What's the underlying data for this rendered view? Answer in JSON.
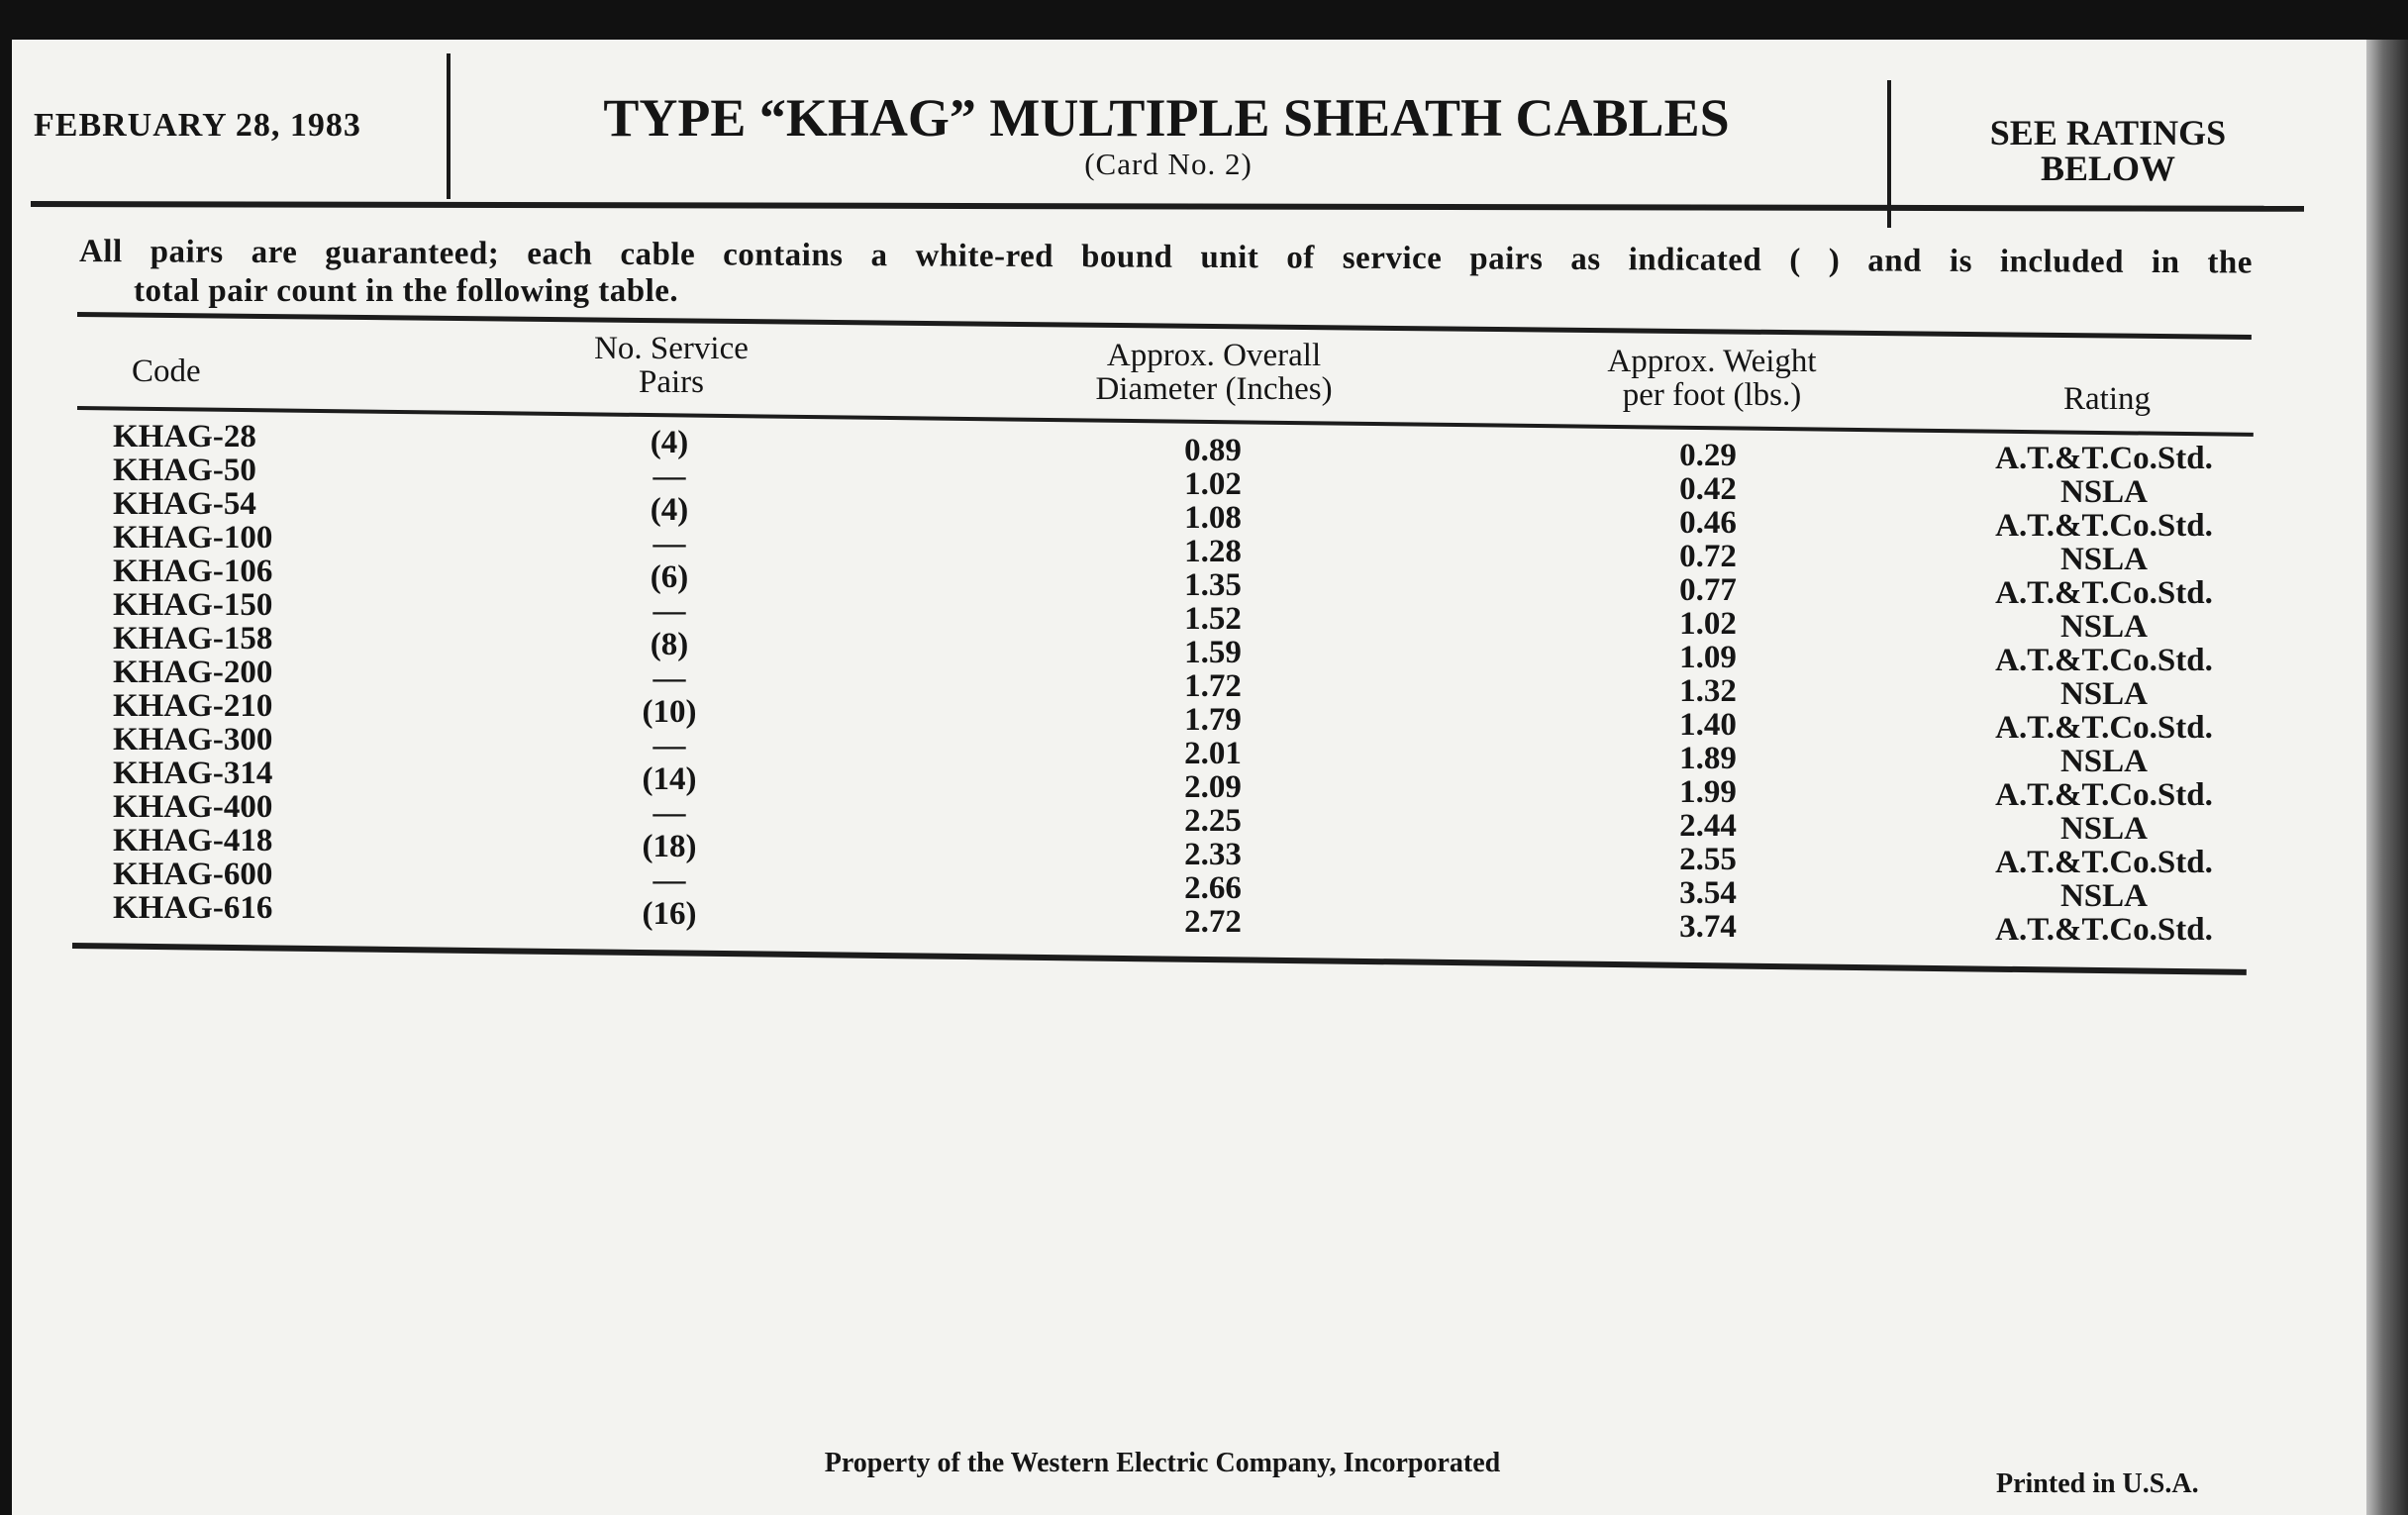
{
  "header": {
    "date": "FEBRUARY 28, 1983",
    "title": "TYPE “KHAG” MULTIPLE SHEATH CABLES",
    "subtitle": "(Card No. 2)",
    "ratings_line1": "SEE RATINGS",
    "ratings_line2": "BELOW"
  },
  "intro": {
    "line1": "All pairs are guaranteed; each cable contains a white-red bound unit of service pairs as indicated (   ) and is included in the",
    "line2": "total pair count in the following table."
  },
  "table": {
    "columns": {
      "code": "Code",
      "pairs_1": "No. Service",
      "pairs_2": "Pairs",
      "diameter_1": "Approx. Overall",
      "diameter_2": "Diameter (Inches)",
      "weight_1": "Approx. Weight",
      "weight_2": "per foot (lbs.)",
      "rating": "Rating"
    },
    "code": [
      "KHAG-28",
      "KHAG-50",
      "KHAG-54",
      "KHAG-100",
      "KHAG-106",
      "KHAG-150",
      "KHAG-158",
      "KHAG-200",
      "KHAG-210",
      "KHAG-300",
      "KHAG-314",
      "KHAG-400",
      "KHAG-418",
      "KHAG-600",
      "KHAG-616"
    ],
    "service_pairs": [
      "(4)",
      "—",
      "(4)",
      "—",
      "(6)",
      "—",
      "(8)",
      "—",
      "(10)",
      "—",
      "(14)",
      "—",
      "(18)",
      "—",
      "(16)"
    ],
    "diameter": [
      "0.89",
      "1.02",
      "1.08",
      "1.28",
      "1.35",
      "1.52",
      "1.59",
      "1.72",
      "1.79",
      "2.01",
      "2.09",
      "2.25",
      "2.33",
      "2.66",
      "2.72"
    ],
    "weight": [
      "0.29",
      "0.42",
      "0.46",
      "0.72",
      "0.77",
      "1.02",
      "1.09",
      "1.32",
      "1.40",
      "1.89",
      "1.99",
      "2.44",
      "2.55",
      "3.54",
      "3.74"
    ],
    "rating": [
      "A.T.&T.Co.Std.",
      "NSLA",
      "A.T.&T.Co.Std.",
      "NSLA",
      "A.T.&T.Co.Std.",
      "NSLA",
      "A.T.&T.Co.Std.",
      "NSLA",
      "A.T.&T.Co.Std.",
      "NSLA",
      "A.T.&T.Co.Std.",
      "NSLA",
      "A.T.&T.Co.Std.",
      "NSLA",
      "A.T.&T.Co.Std."
    ]
  },
  "footer": {
    "property": "Property of the Western Electric Company, Incorporated",
    "printed": "Printed in U.S.A."
  }
}
